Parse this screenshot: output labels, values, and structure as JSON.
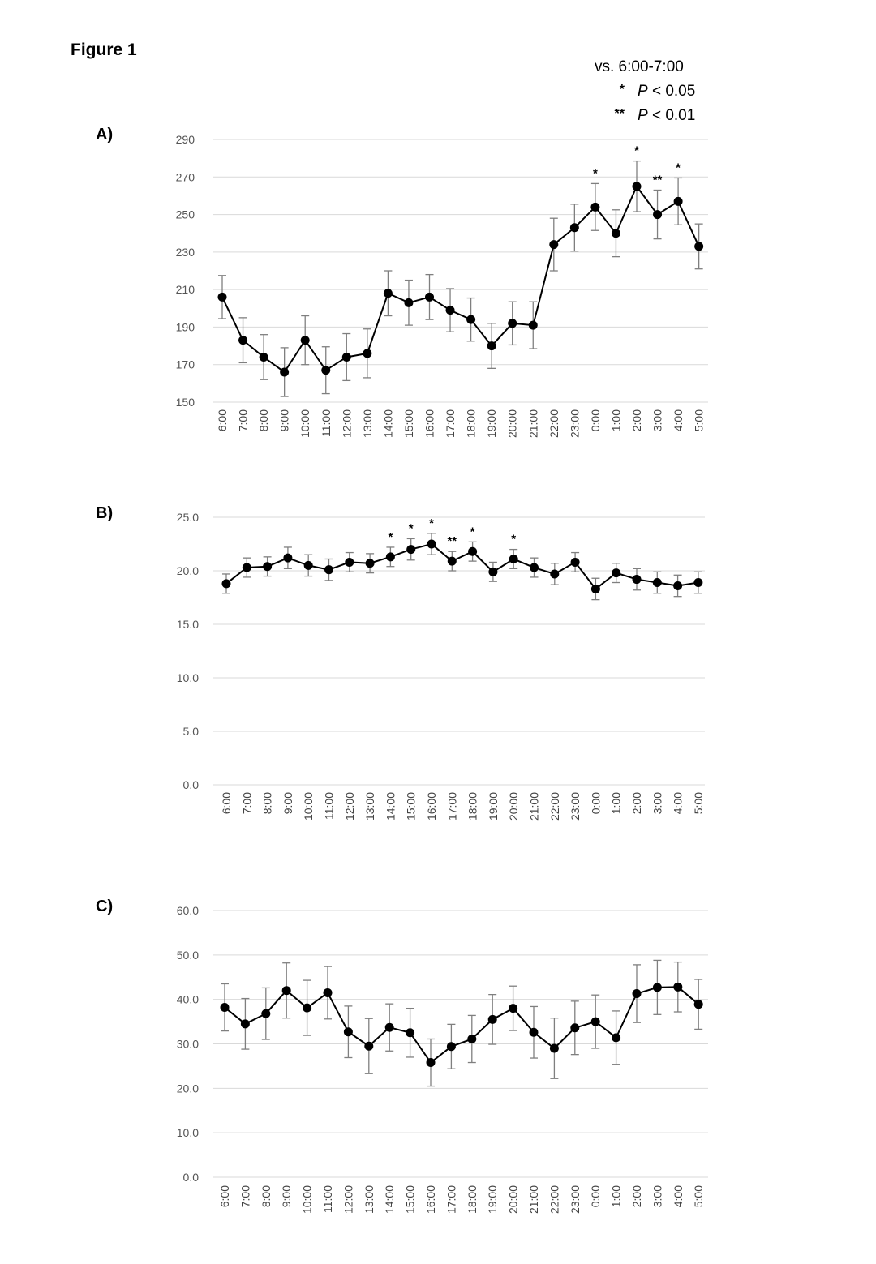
{
  "figure_title": "Figure 1",
  "legend": {
    "reference": "vs. 6:00-7:00",
    "entries": [
      {
        "symbol": "*",
        "italic": "P",
        "rest": " < 0.05"
      },
      {
        "symbol": "**",
        "italic": "P",
        "rest": " < 0.01"
      }
    ]
  },
  "colors": {
    "line": "#000000",
    "marker": "#000000",
    "error_bar": "#7f7f7f",
    "grid": "#d9d9d9",
    "tick_text": "#555555"
  },
  "chart_data": [
    {
      "panel": "A)",
      "type": "line",
      "categories": [
        "6:00",
        "7:00",
        "8:00",
        "9:00",
        "10:00",
        "11:00",
        "12:00",
        "13:00",
        "14:00",
        "15:00",
        "16:00",
        "17:00",
        "18:00",
        "19:00",
        "20:00",
        "21:00",
        "22:00",
        "23:00",
        "0:00",
        "1:00",
        "2:00",
        "3:00",
        "4:00",
        "5:00"
      ],
      "values": [
        206,
        183,
        174,
        166,
        183,
        167,
        174,
        176,
        208,
        203,
        206,
        199,
        194,
        180,
        192,
        191,
        234,
        243,
        254,
        240,
        265,
        250,
        257,
        233
      ],
      "errors": [
        11.5,
        12,
        12,
        13,
        13,
        12.5,
        12.5,
        13,
        12,
        12,
        12,
        11.5,
        11.5,
        12,
        11.5,
        12.5,
        14,
        12.5,
        12.5,
        12.5,
        13.5,
        13,
        12.5,
        12
      ],
      "significance": [
        "",
        "",
        "",
        "",
        "",
        "",
        "",
        "",
        "",
        "",
        "",
        "",
        "",
        "",
        "",
        "",
        "",
        "",
        "*",
        "",
        "*",
        "**",
        "*",
        ""
      ],
      "ylim": [
        150,
        290
      ],
      "yticks": [
        150,
        170,
        190,
        210,
        230,
        250,
        270,
        290
      ],
      "ytick_decimals": 0,
      "grid": true,
      "legend": false
    },
    {
      "panel": "B)",
      "type": "line",
      "categories": [
        "6:00",
        "7:00",
        "8:00",
        "9:00",
        "10:00",
        "11:00",
        "12:00",
        "13:00",
        "14:00",
        "15:00",
        "16:00",
        "17:00",
        "18:00",
        "19:00",
        "20:00",
        "21:00",
        "22:00",
        "23:00",
        "0:00",
        "1:00",
        "2:00",
        "3:00",
        "4:00",
        "5:00"
      ],
      "values": [
        18.8,
        20.3,
        20.4,
        21.2,
        20.5,
        20.1,
        20.8,
        20.7,
        21.3,
        22.0,
        22.5,
        20.9,
        21.8,
        19.9,
        21.1,
        20.3,
        19.7,
        20.8,
        18.3,
        19.8,
        19.2,
        18.9,
        18.6,
        18.9
      ],
      "errors": [
        0.9,
        0.9,
        0.9,
        1.0,
        1.0,
        1.0,
        0.9,
        0.9,
        0.9,
        1.0,
        1.0,
        0.9,
        0.9,
        0.9,
        0.9,
        0.9,
        1.0,
        0.9,
        1.0,
        0.9,
        1.0,
        1.0,
        1.0,
        1.0
      ],
      "significance": [
        "",
        "",
        "",
        "",
        "",
        "",
        "",
        "",
        "*",
        "*",
        "*",
        "**",
        "*",
        "",
        "*",
        "",
        "",
        "",
        "",
        "",
        "",
        "",
        "",
        ""
      ],
      "ylim": [
        0,
        25
      ],
      "yticks": [
        0,
        5,
        10,
        15,
        20,
        25
      ],
      "ytick_decimals": 1,
      "grid": true,
      "legend": false
    },
    {
      "panel": "C)",
      "type": "line",
      "categories": [
        "6:00",
        "7:00",
        "8:00",
        "9:00",
        "10:00",
        "11:00",
        "12:00",
        "13:00",
        "14:00",
        "15:00",
        "16:00",
        "17:00",
        "18:00",
        "19:00",
        "20:00",
        "21:00",
        "22:00",
        "23:00",
        "0:00",
        "1:00",
        "2:00",
        "3:00",
        "4:00",
        "5:00"
      ],
      "values": [
        38.2,
        34.5,
        36.8,
        42.0,
        38.1,
        41.5,
        32.7,
        29.5,
        33.7,
        32.5,
        25.8,
        29.4,
        31.1,
        35.5,
        38.0,
        32.6,
        29.0,
        33.6,
        35.0,
        31.4,
        41.3,
        42.7,
        42.8,
        38.9
      ],
      "errors": [
        5.3,
        5.7,
        5.8,
        6.2,
        6.2,
        5.9,
        5.8,
        6.2,
        5.3,
        5.5,
        5.3,
        5.0,
        5.3,
        5.6,
        5.0,
        5.8,
        6.8,
        6.0,
        6.0,
        6.0,
        6.5,
        6.1,
        5.6,
        5.6
      ],
      "significance": [
        "",
        "",
        "",
        "",
        "",
        "",
        "",
        "",
        "",
        "",
        "",
        "",
        "",
        "",
        "",
        "",
        "",
        "",
        "",
        "",
        "",
        "",
        "",
        ""
      ],
      "ylim": [
        0,
        60
      ],
      "yticks": [
        0,
        10,
        20,
        30,
        40,
        50,
        60
      ],
      "ytick_decimals": 1,
      "grid": true,
      "legend": false
    }
  ]
}
